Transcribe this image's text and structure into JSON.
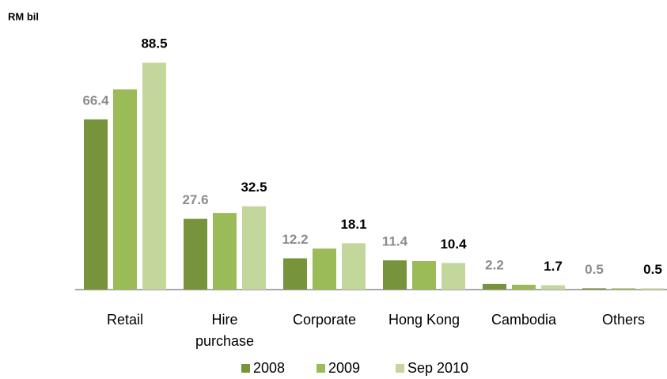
{
  "chart_data": {
    "type": "bar",
    "y_label": "RM bil",
    "categories": [
      "Retail",
      "Hire purchase",
      "Corporate",
      "Hong Kong",
      "Cambodia",
      "Others"
    ],
    "series": [
      {
        "name": "2008",
        "color": "#77933c",
        "label_color": "#8c8c8c",
        "values": [
          66.4,
          27.6,
          12.2,
          11.4,
          2.2,
          0.5
        ]
      },
      {
        "name": "2009",
        "color": "#9bbb59",
        "values": [
          78.1,
          29.9,
          16.0,
          11.1,
          1.9,
          0.5
        ]
      },
      {
        "name": "Sep 2010",
        "color": "#c3d69b",
        "label_color": "#000000",
        "values": [
          88.5,
          32.5,
          18.1,
          10.4,
          1.7,
          0.5
        ]
      }
    ],
    "legend": "bottom"
  }
}
